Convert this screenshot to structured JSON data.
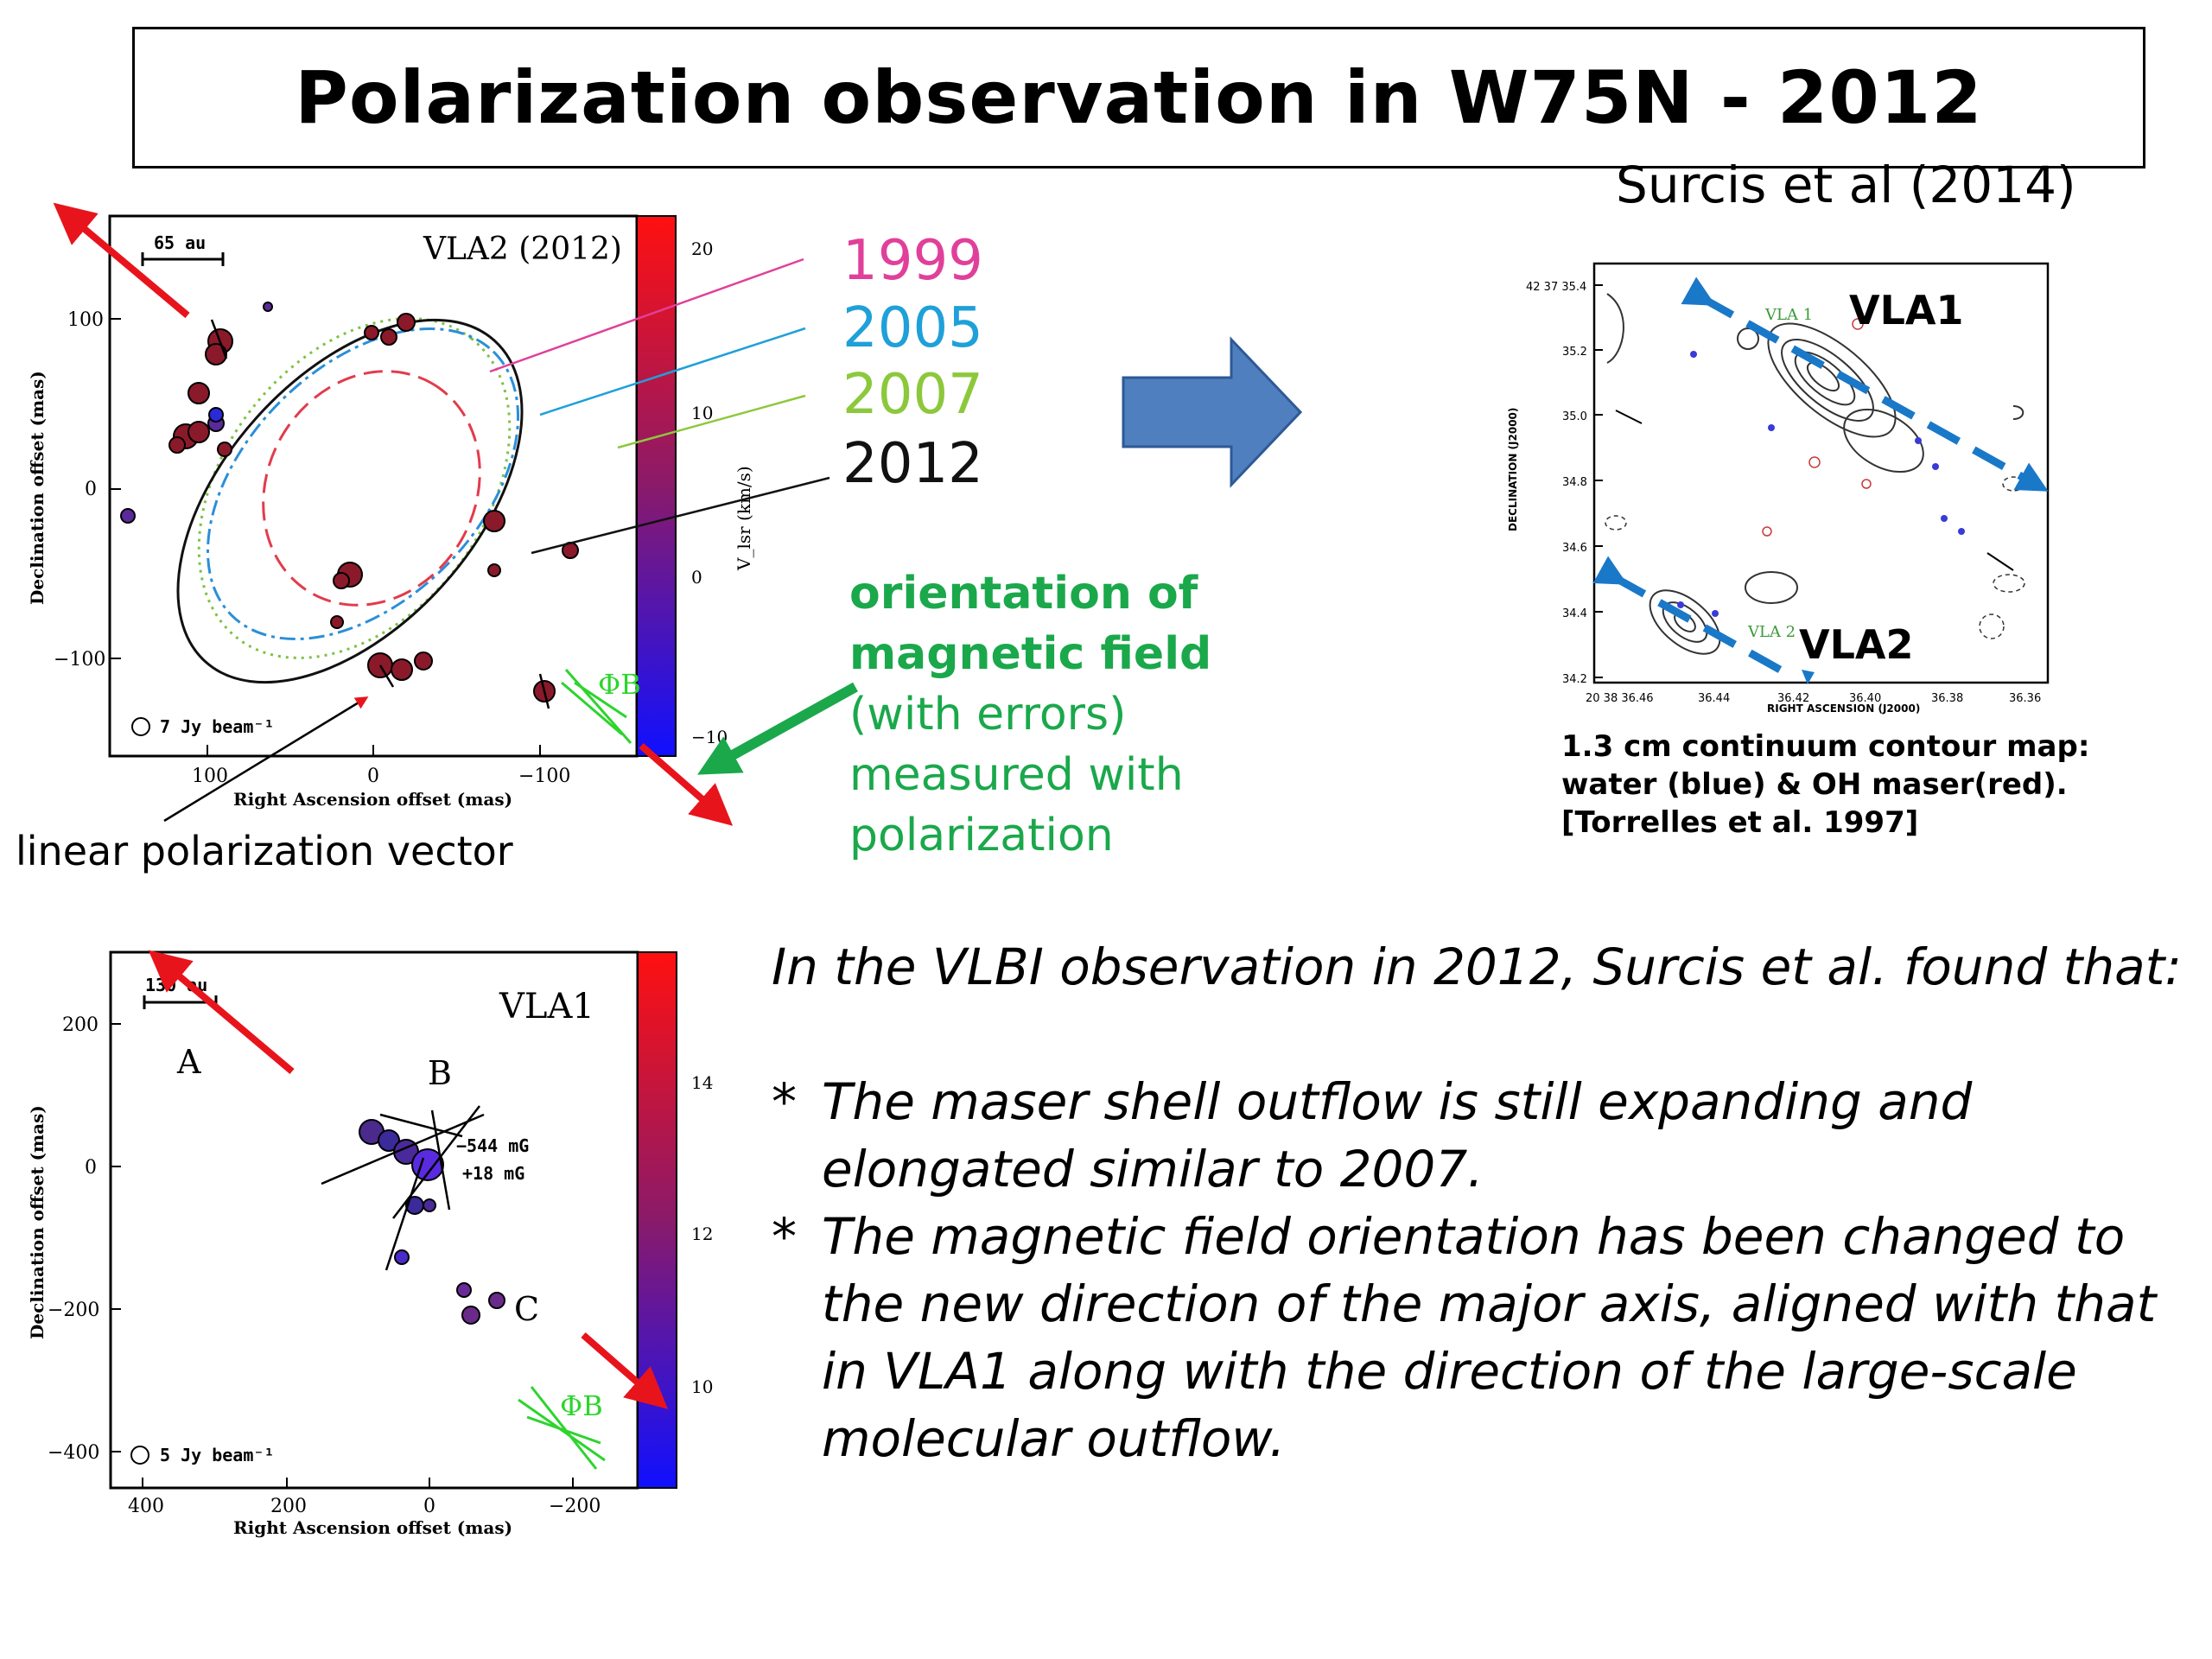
{
  "slide": {
    "title": "Polarization observation in W75N - 2012",
    "reference": "Surcis et al (2014)"
  },
  "vla2_panel": {
    "panel_title": "VLA2 (2012)",
    "scale_bar": "65 au",
    "beam_label": "7 Jy beam⁻¹",
    "xlabel": "Right Ascension offset (mas)",
    "ylabel": "Declination offset (mas)",
    "x_ticks": [
      "100",
      "0",
      "−100"
    ],
    "y_ticks": [
      "100",
      "0",
      "−100"
    ],
    "colorbar_ticks": [
      "20",
      "10",
      "0",
      "−10"
    ],
    "colorbar_label": "V_lsr (km/s)",
    "phi_b": "ΦB",
    "colors": {
      "1999": "#e23b8c",
      "2005": "#2a8fd8",
      "2007": "#7dc242",
      "2012": "#000000"
    }
  },
  "years": [
    {
      "label": "1999",
      "color": "#e0409a"
    },
    {
      "label": "2005",
      "color": "#1fa0d8"
    },
    {
      "label": "2007",
      "color": "#8cc83c"
    },
    {
      "label": "2012",
      "color": "#111111"
    }
  ],
  "orientation_label": {
    "line1": "orientation of",
    "line2": "magnetic field",
    "line3": "(with errors)",
    "line4": "measured with",
    "line5": "polarization"
  },
  "linear_pol_label": "linear polarization vector",
  "torrelles_panel": {
    "vla1": "VLA1",
    "vla2": "VLA2",
    "vla1_small": "VLA 1",
    "vla2_small": "VLA 2",
    "y_ticks": [
      "42 37 35.4",
      "35.2",
      "35.0",
      "34.8",
      "34.6",
      "34.4",
      "34.2"
    ],
    "x_ticks": [
      "20 38 36.46",
      "36.44",
      "36.42",
      "36.40",
      "36.38",
      "36.36"
    ],
    "xlabel": "RIGHT ASCENSION (J2000)",
    "ylabel": "DECLINATION (J2000)",
    "caption_line1": "1.3 cm continuum contour map:",
    "caption_line2": "water (blue) & OH maser(red).",
    "caption_line3": "[Torrelles et al. 1997]"
  },
  "vla1_panel": {
    "panel_title": "VLA1",
    "scale_bar": "130 au",
    "label_a": "A",
    "label_b": "B",
    "label_c": "C",
    "field_1": "−544 mG",
    "field_2": "+18 mG",
    "beam_label": "5 Jy beam⁻¹",
    "xlabel": "Right Ascension offset (mas)",
    "ylabel": "Declination offset (mas)",
    "x_ticks": [
      "400",
      "200",
      "0",
      "−200"
    ],
    "y_ticks": [
      "200",
      "0",
      "−200",
      "−400"
    ],
    "colorbar_ticks": [
      "14",
      "12",
      "10"
    ],
    "phi_b": "ΦB"
  },
  "findings": {
    "intro": "In the VLBI observation in 2012, Surcis et al. found that:",
    "bullet_mark": "*",
    "bullet1": "The maser shell outflow is still expanding and elongated similar to 2007.",
    "bullet2": "The magnetic field orientation has been changed to the new direction of the major axis, aligned with that in VLA1 along with the direction of the large-scale molecular outflow."
  },
  "accent_colors": {
    "red_arrow": "#e8141c",
    "blue_arrow": "#4f7fbf",
    "green_arrow": "#1aa84b",
    "dashed_blue": "#1a78c8"
  }
}
